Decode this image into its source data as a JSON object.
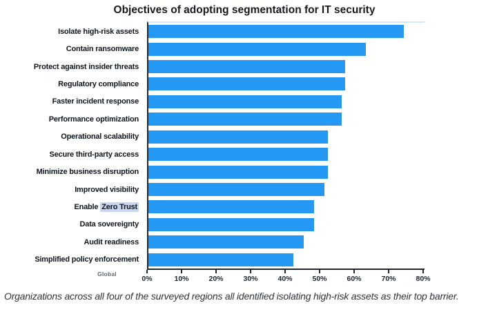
{
  "title": "Objectives of adopting segmentation for IT security",
  "caption": "Organizations across all four of the surveyed regions all identified isolating high-risk assets as their top barrier.",
  "axis_group_label": "Global",
  "colors": {
    "bar": "#2598F4",
    "zero_trust_highlight": "#C9D6EF",
    "axis": "#20262e",
    "plot_top_border": "#cdeafc"
  },
  "chart_data": {
    "type": "bar",
    "orientation": "horizontal",
    "title": "Objectives of adopting segmentation for IT security",
    "categories": [
      "Isolate high-risk assets",
      "Contain ransomware",
      "Protect against insider threats",
      "Regulatory compliance",
      "Faster incident response",
      "Performance optimization",
      "Operational scalability",
      "Secure third-party access",
      "Minimize business disruption",
      "Improved visibility",
      "Enable Zero Trust",
      "Data sovereignty",
      "Audit readiness",
      "Simplified policy enforcement"
    ],
    "values": [
      74,
      63,
      57,
      57,
      56,
      56,
      52,
      52,
      52,
      51,
      48,
      48,
      45,
      42
    ],
    "highlight_span": "Zero Trust",
    "xlim": [
      0,
      80
    ],
    "tick_labels": [
      "0%",
      "10%",
      "20%",
      "30%",
      "40%",
      "50%",
      "60%",
      "70%",
      "80%"
    ],
    "xlabel": "",
    "ylabel": "",
    "grid": false,
    "legend": "none"
  }
}
